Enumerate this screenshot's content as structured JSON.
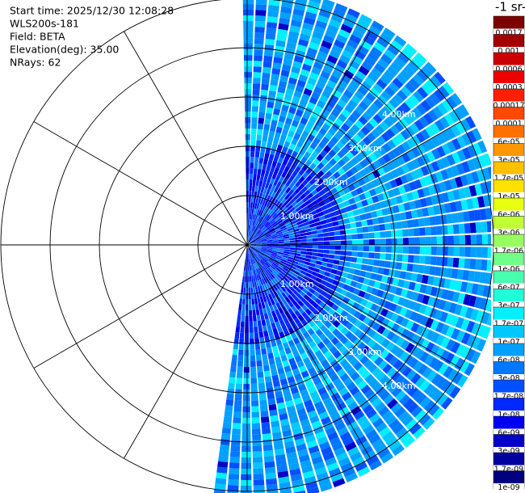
{
  "info": [
    "Start time: 2025/12/30 12:08:28",
    "WLS200s-181",
    "Field: BETA",
    "Elevation(deg): 35.00",
    "NRays: 62"
  ],
  "range_labels_upper": [
    "1.00km",
    "2.00km",
    "3.00km",
    "4.00km"
  ],
  "range_labels_lower": [
    "1.00km",
    "2.00km",
    "3.00km",
    "4.00km"
  ],
  "colorbar": {
    "unit": "-1 sr-",
    "labels": [
      "0.0017",
      "0.001",
      "0.0006",
      "0.0003",
      "0.00017",
      "0.0001",
      "6e-05",
      "3e-05",
      "1.7e-05",
      "1e-05",
      "6e-06",
      "3e-06",
      "1.7e-06",
      "1e-06",
      "6e-07",
      "3e-07",
      "1.7e-07",
      "1e-07",
      "6e-08",
      "3e-08",
      "1.7e-08",
      "1e-08",
      "6e-09",
      "3e-09",
      "1.7e-09",
      "1e-09"
    ],
    "colors": [
      "#7f0000",
      "#a00000",
      "#cc0000",
      "#ee0000",
      "#ff2000",
      "#ff4800",
      "#ff7000",
      "#ff9800",
      "#ffc000",
      "#ffe000",
      "#e8ff10",
      "#c0ff38",
      "#98ff60",
      "#70ff88",
      "#48ffb0",
      "#20ffd8",
      "#00f0ff",
      "#00c8ff",
      "#00a0ff",
      "#0078ff",
      "#0050ff",
      "#0028ff",
      "#0000f0",
      "#0000c8",
      "#0000a0",
      "#000080"
    ]
  }
}
